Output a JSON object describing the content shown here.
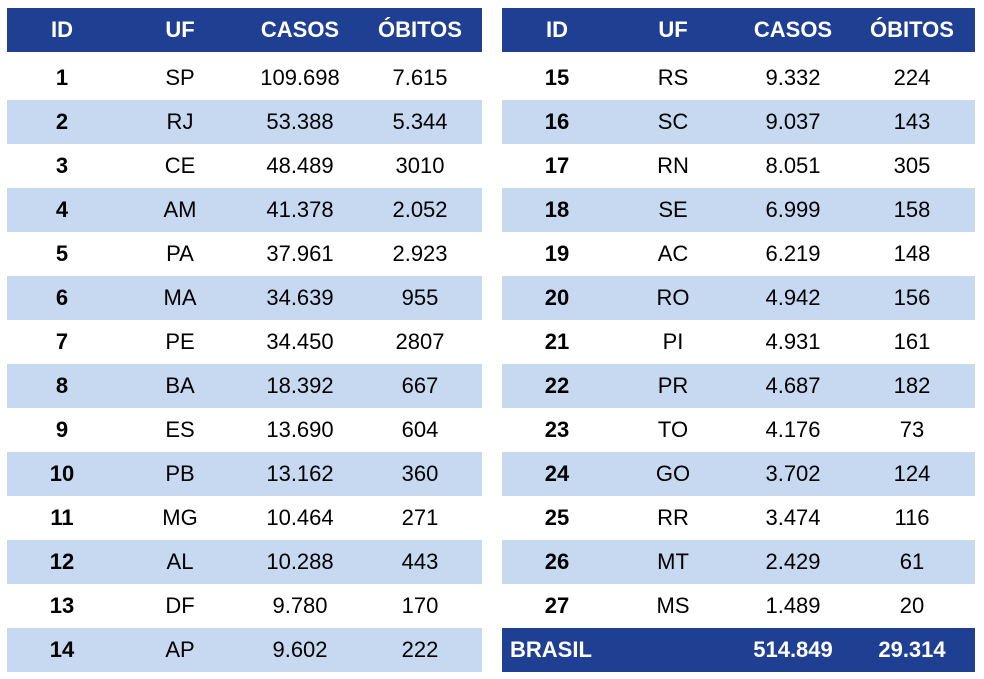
{
  "tables": [
    {
      "header": [
        "ID",
        "UF",
        "CASOS",
        "ÓBITOS"
      ],
      "rows": [
        [
          "1",
          "SP",
          "109.698",
          "7.615"
        ],
        [
          "2",
          "RJ",
          "53.388",
          "5.344"
        ],
        [
          "3",
          "CE",
          "48.489",
          "3010"
        ],
        [
          "4",
          "AM",
          "41.378",
          "2.052"
        ],
        [
          "5",
          "PA",
          "37.961",
          "2.923"
        ],
        [
          "6",
          "MA",
          "34.639",
          "955"
        ],
        [
          "7",
          "PE",
          "34.450",
          "2807"
        ],
        [
          "8",
          "BA",
          "18.392",
          "667"
        ],
        [
          "9",
          "ES",
          "13.690",
          "604"
        ],
        [
          "10",
          "PB",
          "13.162",
          "360"
        ],
        [
          "11",
          "MG",
          "10.464",
          "271"
        ],
        [
          "12",
          "AL",
          "10.288",
          "443"
        ],
        [
          "13",
          "DF",
          "9.780",
          "170"
        ],
        [
          "14",
          "AP",
          "9.602",
          "222"
        ]
      ]
    },
    {
      "header": [
        "ID",
        "UF",
        "CASOS",
        "ÓBITOS"
      ],
      "rows": [
        [
          "15",
          "RS",
          "9.332",
          "224"
        ],
        [
          "16",
          "SC",
          "9.037",
          "143"
        ],
        [
          "17",
          "RN",
          "8.051",
          "305"
        ],
        [
          "18",
          "SE",
          "6.999",
          "158"
        ],
        [
          "19",
          "AC",
          "6.219",
          "148"
        ],
        [
          "20",
          "RO",
          "4.942",
          "156"
        ],
        [
          "21",
          "PI",
          "4.931",
          "161"
        ],
        [
          "22",
          "PR",
          "4.687",
          "182"
        ],
        [
          "23",
          "TO",
          "4.176",
          "73"
        ],
        [
          "24",
          "GO",
          "3.702",
          "124"
        ],
        [
          "25",
          "RR",
          "3.474",
          "116"
        ],
        [
          "26",
          "MT",
          "2.429",
          "61"
        ],
        [
          "27",
          "MS",
          "1.489",
          "20"
        ]
      ],
      "total": [
        "BRASIL",
        "514.849",
        "29.314"
      ]
    }
  ]
}
